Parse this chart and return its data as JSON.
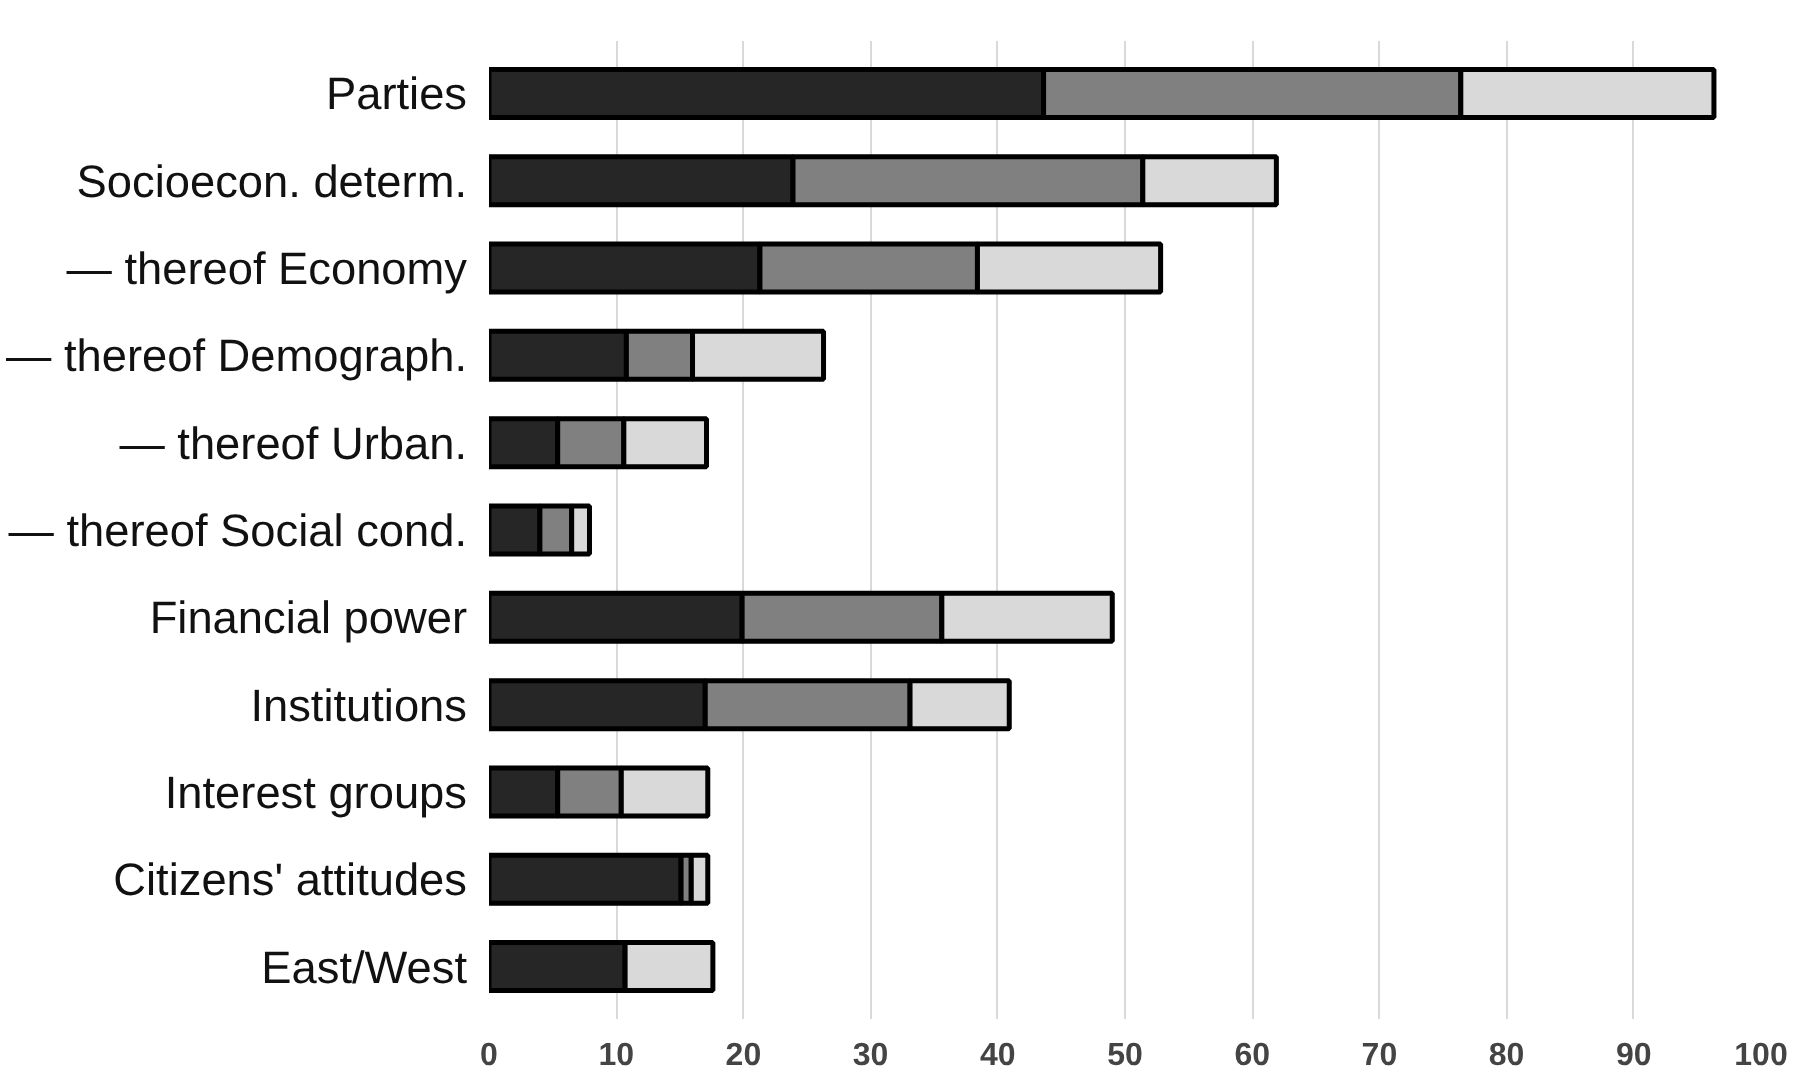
{
  "chart_data": {
    "type": "bar",
    "orientation": "horizontal",
    "stacked": true,
    "grid": "x",
    "categories": [
      "Parties",
      "Socioecon. determ.",
      "— thereof Economy",
      "— thereof Demograph.",
      "— thereof Urban.",
      "— thereof Social cond.",
      "Financial power",
      "Institutions",
      "Interest groups",
      "Citizens' attitudes",
      "East/West"
    ],
    "series": [
      {
        "color": "#262626",
        "values": [
          43.6,
          23.9,
          21.3,
          10.8,
          5.4,
          4.0,
          19.9,
          17.0,
          5.4,
          15.1,
          10.7
        ]
      },
      {
        "color": "#808080",
        "values": [
          32.8,
          27.5,
          17.1,
          5.2,
          5.2,
          2.5,
          15.7,
          16.1,
          5.0,
          0.8,
          null
        ]
      },
      {
        "color": "#d9d9d9",
        "values": [
          19.9,
          10.5,
          14.4,
          10.3,
          6.5,
          1.4,
          13.4,
          7.8,
          6.8,
          1.3,
          6.9
        ]
      }
    ],
    "xlim": [
      0,
      100
    ],
    "xticks": [
      0,
      10,
      20,
      30,
      40,
      50,
      60,
      70,
      80,
      90,
      100
    ]
  }
}
